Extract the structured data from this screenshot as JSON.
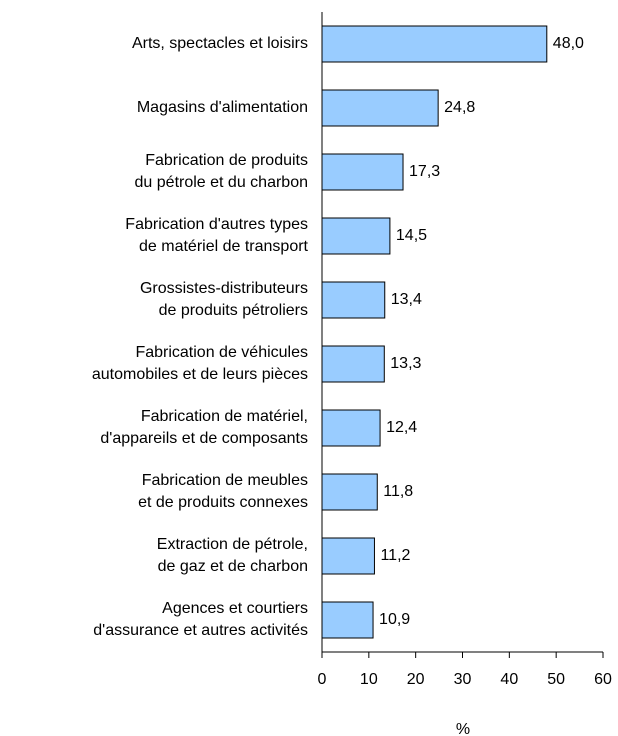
{
  "chart_data": {
    "type": "bar",
    "orientation": "horizontal",
    "categories": [
      [
        "Arts, spectacles et loisirs"
      ],
      [
        "Magasins d'alimentation"
      ],
      [
        "Fabrication de produits",
        "du pétrole et du charbon"
      ],
      [
        "Fabrication d'autres types",
        "de matériel de transport"
      ],
      [
        "Grossistes-distributeurs",
        "de produits pétroliers"
      ],
      [
        "Fabrication de véhicules",
        "automobiles et de leurs pièces"
      ],
      [
        "Fabrication de matériel,",
        "d'appareils et de composants"
      ],
      [
        "Fabrication de meubles",
        "et de produits connexes"
      ],
      [
        "Extraction de pétrole,",
        "de gaz et de charbon"
      ],
      [
        "Agences et courtiers",
        "d'assurance et autres activités"
      ]
    ],
    "values": [
      48.0,
      24.8,
      17.3,
      14.5,
      13.4,
      13.3,
      12.4,
      11.8,
      11.2,
      10.9
    ],
    "value_labels": [
      "48,0",
      "24,8",
      "17,3",
      "14,5",
      "13,4",
      "13,3",
      "12,4",
      "11,8",
      "11,2",
      "10,9"
    ],
    "color": "#99ccff",
    "xlim": [
      0,
      60
    ],
    "xticks": [
      0,
      10,
      20,
      30,
      40,
      50,
      60
    ],
    "xlabel": "%"
  }
}
